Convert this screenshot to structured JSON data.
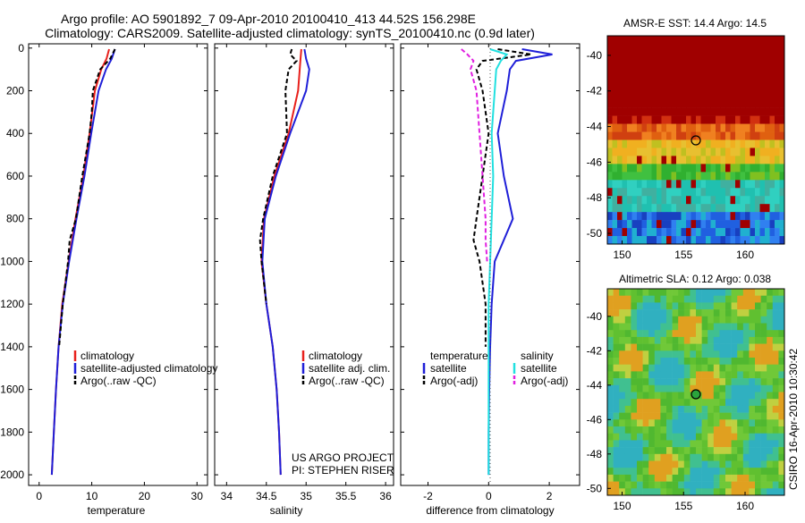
{
  "header": {
    "line1": "Argo profile: AO 5901892_7 09-Apr-2010 20100410_413 44.52S 156.298E",
    "line2": "Climatology: CARS2009. Satellite-adjusted climatology: synTS_20100410.nc (0.9d later)"
  },
  "colors": {
    "climatology": "#e8201c",
    "satellite": "#1f1fd8",
    "argo": "#000000",
    "sat_salinity": "#22e0e0",
    "argo_salinity": "#e020e0"
  },
  "panels": {
    "temperature": {
      "xlabel": "temperature",
      "xticks": [
        "0",
        "10",
        "20",
        "30"
      ],
      "legend": [
        "climatology",
        "satellite-adjusted climatology",
        "Argo(..raw -QC)"
      ]
    },
    "salinity": {
      "xlabel": "salinity",
      "xticks": [
        "34",
        "34.5",
        "35",
        "35.5",
        "36"
      ],
      "legend": [
        "climatology",
        "satellite adj. clim.",
        "Argo(..raw -QC)"
      ],
      "credit1": "US ARGO PROJECT",
      "credit2": "PI: STEPHEN RISER"
    },
    "difference": {
      "xlabel": "difference from climatology",
      "xticks": [
        "-2",
        "0",
        "2"
      ],
      "legend_temp_title": "temperature",
      "legend_sal_title": "salinity",
      "legend_temp": [
        "satellite",
        "Argo(-adj)"
      ],
      "legend_sal": [
        "satellite",
        "Argo(-adj)"
      ]
    }
  },
  "depth_ticks": [
    "0",
    "200",
    "400",
    "600",
    "800",
    "1000",
    "1200",
    "1400",
    "1600",
    "1800",
    "2000"
  ],
  "maps": {
    "sst": {
      "title": "AMSR-E SST: 14.4 Argo: 14.5",
      "yticks": [
        "-40",
        "-42",
        "-44",
        "-46",
        "-48",
        "-50"
      ],
      "xticks": [
        "150",
        "155",
        "160"
      ]
    },
    "sla": {
      "title": "Altimetric SLA: 0.12 Argo: 0.038",
      "yticks": [
        "-40",
        "-42",
        "-44",
        "-46",
        "-48",
        "-50"
      ],
      "xticks": [
        "150",
        "155",
        "160"
      ]
    }
  },
  "side_label": "CSIRO 16-Apr-2010 10:30:42",
  "chart_data": [
    {
      "type": "line",
      "name": "temperature profile",
      "xlabel": "temperature",
      "ylabel": "",
      "xlim": [
        -2,
        32
      ],
      "ylim": [
        2050,
        0
      ],
      "series": [
        {
          "name": "climatology",
          "depth": [
            5,
            50,
            100,
            200,
            400,
            600,
            800,
            1000,
            1200,
            1400,
            1600,
            1800,
            2000
          ],
          "values": [
            13.3,
            12.8,
            11.8,
            10.6,
            9.6,
            8.4,
            6.9,
            5.6,
            4.4,
            3.7,
            3.2,
            2.8,
            2.4
          ]
        },
        {
          "name": "satellite-adjusted climatology",
          "depth": [
            5,
            50,
            100,
            200,
            400,
            600,
            800,
            1000,
            1200,
            1400,
            1600,
            1800,
            2000
          ],
          "values": [
            14.4,
            13.8,
            12.7,
            11.3,
            9.9,
            8.6,
            7.1,
            5.7,
            4.5,
            3.7,
            3.2,
            2.8,
            2.4
          ]
        },
        {
          "name": "Argo(..raw -QC)",
          "depth": [
            5,
            50,
            100,
            200,
            300,
            400,
            600,
            800,
            900,
            1000,
            1200,
            1400
          ],
          "values": [
            14.4,
            13.5,
            11.6,
            10.2,
            10.0,
            9.6,
            8.2,
            7.0,
            5.8,
            5.5,
            4.5,
            3.8
          ]
        }
      ]
    },
    {
      "type": "line",
      "name": "salinity profile",
      "xlabel": "salinity",
      "ylabel": "",
      "xlim": [
        33.85,
        36.1
      ],
      "ylim": [
        2050,
        0
      ],
      "series": [
        {
          "name": "climatology",
          "depth": [
            5,
            50,
            100,
            200,
            400,
            600,
            800,
            1000,
            1200,
            1400,
            1600,
            1800,
            2000
          ],
          "values": [
            34.94,
            34.93,
            34.92,
            34.9,
            34.78,
            34.6,
            34.47,
            34.44,
            34.5,
            34.58,
            34.63,
            34.66,
            34.68
          ]
        },
        {
          "name": "satellite adj. clim.",
          "depth": [
            5,
            50,
            100,
            200,
            400,
            600,
            800,
            1000,
            1200,
            1400,
            1600,
            1800,
            2000
          ],
          "values": [
            34.98,
            35.0,
            35.04,
            35.0,
            34.8,
            34.62,
            34.48,
            34.45,
            34.5,
            34.58,
            34.63,
            34.66,
            34.68
          ]
        },
        {
          "name": "Argo(..raw -QC)",
          "depth": [
            5,
            30,
            60,
            100,
            200,
            400,
            600,
            800,
            900,
            1000,
            1200
          ],
          "values": [
            34.82,
            34.8,
            34.88,
            34.78,
            34.74,
            34.76,
            34.58,
            34.46,
            34.42,
            34.44,
            34.5
          ]
        }
      ]
    },
    {
      "type": "line",
      "name": "difference from climatology",
      "xlabel": "difference from climatology",
      "ylabel": "",
      "xlim": [
        -2.9,
        3.0
      ],
      "ylim": [
        2050,
        0
      ],
      "series": [
        {
          "name": "temperature satellite",
          "depth": [
            5,
            30,
            60,
            100,
            200,
            400,
            600,
            800,
            1000,
            1200,
            1400,
            1600,
            1800,
            2000
          ],
          "values": [
            1.1,
            2.1,
            0.9,
            0.7,
            0.6,
            0.3,
            0.5,
            0.8,
            0.2,
            0.1,
            0.05,
            0.02,
            0.0,
            0.0
          ]
        },
        {
          "name": "temperature Argo(-adj)",
          "depth": [
            5,
            30,
            60,
            100,
            200,
            400,
            600,
            800,
            900,
            1000,
            1200,
            1400
          ],
          "values": [
            0.3,
            1.4,
            -0.2,
            -0.4,
            -0.2,
            0.0,
            -0.2,
            -0.4,
            -0.5,
            -0.3,
            -0.1,
            -0.1
          ]
        },
        {
          "name": "salinity satellite",
          "depth": [
            5,
            30,
            60,
            100,
            200,
            400,
            600,
            800,
            1000,
            1200,
            1400,
            1600,
            1800,
            2000
          ],
          "values": [
            0.05,
            0.6,
            0.4,
            0.25,
            0.2,
            0.1,
            0.15,
            0.1,
            0.05,
            0.0,
            0.0,
            0.0,
            0.0,
            0.0
          ]
        },
        {
          "name": "salinity Argo(-adj)",
          "depth": [
            5,
            30,
            60,
            100,
            200,
            400,
            600,
            800,
            900,
            1000
          ],
          "values": [
            -0.9,
            -0.7,
            -0.5,
            -0.6,
            -0.4,
            -0.3,
            -0.2,
            -0.1,
            -0.1,
            -0.05
          ]
        }
      ]
    },
    {
      "type": "heatmap",
      "name": "sst map",
      "title": "AMSR-E SST: 14.4 Argo: 14.5",
      "xlim": [
        148.8,
        163.2
      ],
      "ylim": [
        -50.6,
        -38.9
      ],
      "argo_location": {
        "lon": 156.298,
        "lat": -44.52
      }
    },
    {
      "type": "heatmap",
      "name": "sla map",
      "title": "Altimetric SLA: 0.12 Argo: 0.038",
      "xlim": [
        148.8,
        163.2
      ],
      "ylim": [
        -50.4,
        -38.4
      ],
      "argo_location": {
        "lon": 156.298,
        "lat": -44.52
      }
    }
  ]
}
